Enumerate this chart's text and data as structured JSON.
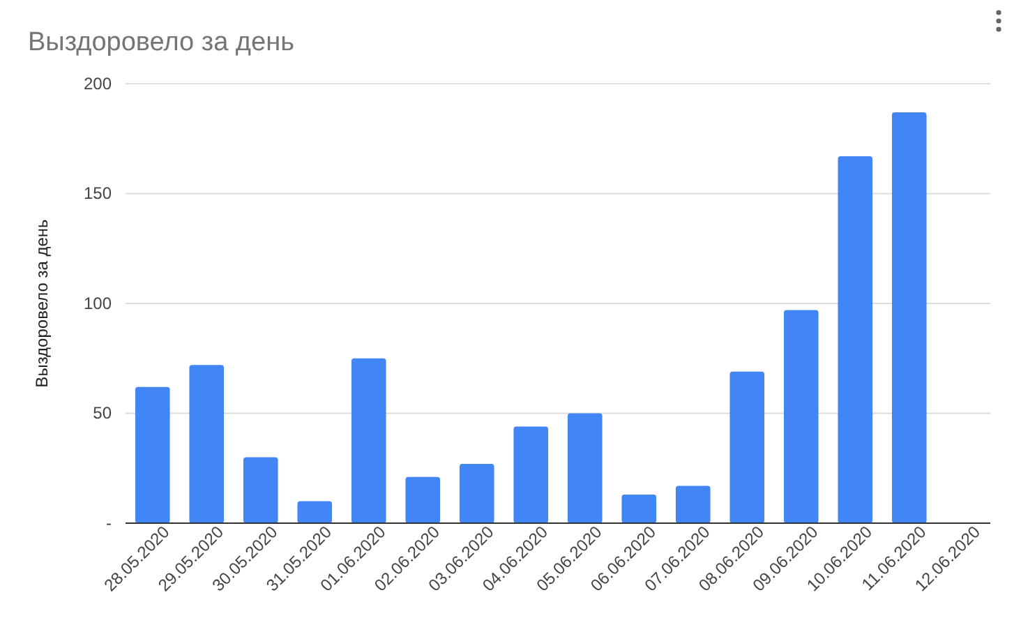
{
  "chart_data": {
    "type": "bar",
    "title": "Выздоровело за день",
    "ylabel": "Выздоровело за день",
    "categories": [
      "28.05.2020",
      "29.05.2020",
      "30.05.2020",
      "31.05.2020",
      "01.06.2020",
      "02.06.2020",
      "03.06.2020",
      "04.06.2020",
      "05.06.2020",
      "06.06.2020",
      "07.06.2020",
      "08.06.2020",
      "09.06.2020",
      "10.06.2020",
      "11.06.2020",
      "12.06.2020"
    ],
    "values": [
      62,
      72,
      30,
      10,
      75,
      21,
      27,
      44,
      50,
      13,
      17,
      69,
      97,
      167,
      187,
      null
    ],
    "color": "#4285f4",
    "ylim": [
      0,
      200
    ],
    "yticks": [
      {
        "value": 0,
        "label": "-"
      },
      50,
      100,
      150,
      200
    ],
    "grid": "y"
  }
}
